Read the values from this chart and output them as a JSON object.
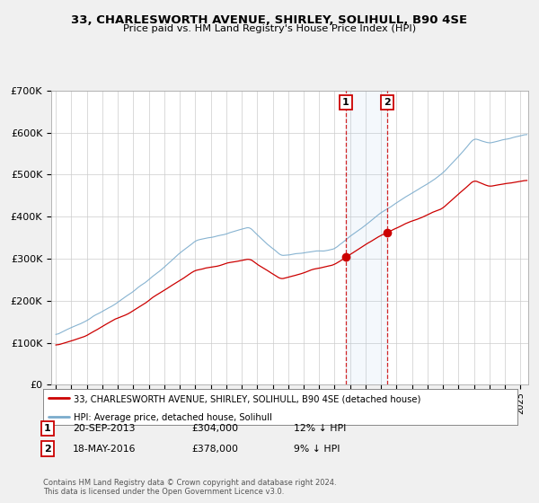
{
  "title": "33, CHARLESWORTH AVENUE, SHIRLEY, SOLIHULL, B90 4SE",
  "subtitle": "Price paid vs. HM Land Registry's House Price Index (HPI)",
  "legend_line1": "33, CHARLESWORTH AVENUE, SHIRLEY, SOLIHULL, B90 4SE (detached house)",
  "legend_line2": "HPI: Average price, detached house, Solihull",
  "transaction1_date": "20-SEP-2013",
  "transaction1_price": 304000,
  "transaction1_hpi_pct": 12,
  "transaction1_label": "1",
  "transaction2_date": "18-MAY-2016",
  "transaction2_price": 378000,
  "transaction2_hpi_pct": 9,
  "transaction2_label": "2",
  "transaction1_hpi_str": "12% ↓ HPI",
  "transaction2_hpi_str": "9% ↓ HPI",
  "footer1": "Contains HM Land Registry data © Crown copyright and database right 2024.",
  "footer2": "This data is licensed under the Open Government Licence v3.0.",
  "hpi_color": "#7aabcc",
  "price_color": "#cc0000",
  "dot_color": "#cc0000",
  "marker1_year": 2013.72,
  "marker2_year": 2016.38,
  "ylim_min": 0,
  "ylim_max": 700000,
  "xlim_min": 1994.7,
  "xlim_max": 2025.5,
  "background_color": "#f0f0f0",
  "plot_bg_color": "#ffffff"
}
